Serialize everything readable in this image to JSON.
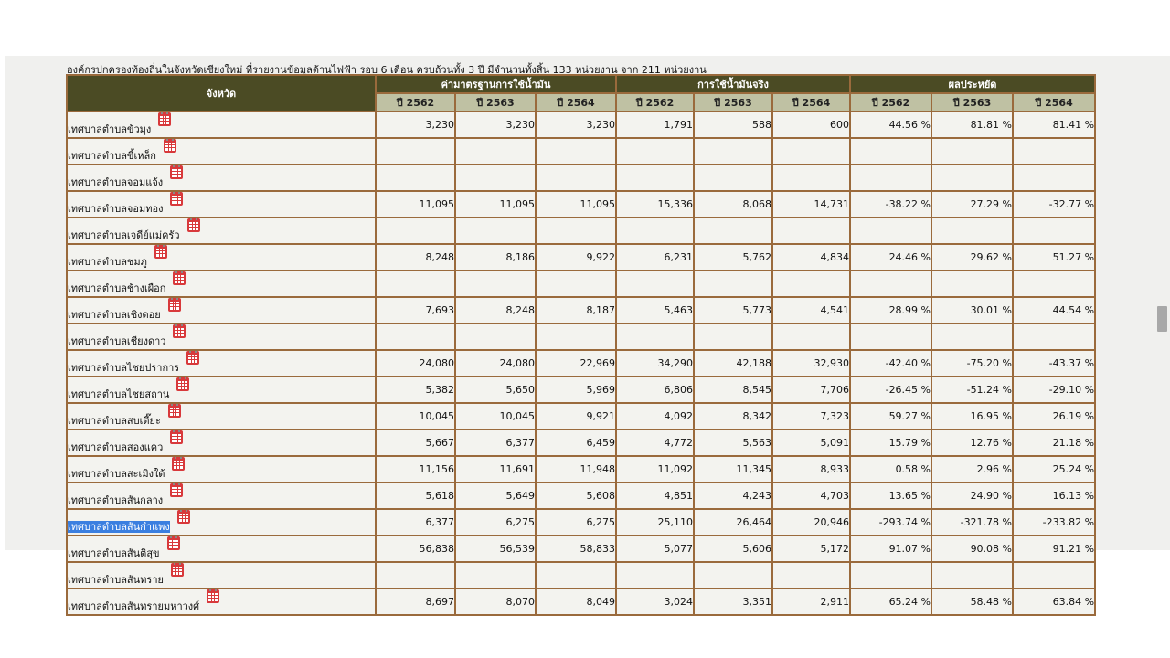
{
  "caption": "องค์กรปกครองท้องถิ่นในจังหวัดเชียงใหม่ ที่รายงานข้อมูลด้านไฟฟ้า รอบ 6 เดือน ครบถ้วนทั้ง 3 ปี มีจำนวนทั้งสิ้น 133 หน่วยงาน จาก 211 หน่วยงาน",
  "header": {
    "province": "จังหวัด",
    "group_standard": "ค่ามาตรฐานการใช้น้ำมัน",
    "group_actual": "การใช้น้ำมันจริง",
    "group_saving": "ผลประหยัด",
    "years": [
      "ปี 2562",
      "ปี 2563",
      "ปี 2564"
    ]
  },
  "rows": [
    {
      "name": "เทศบาลตำบลข้วมุง",
      "v": [
        "3,230",
        "3,230",
        "3,230",
        "1,791",
        "588",
        "600",
        "44.56 %",
        "81.81 %",
        "81.41 %"
      ]
    },
    {
      "name": "เทศบาลตำบลขี้เหล็ก",
      "v": [
        "",
        "",
        "",
        "",
        "",
        "",
        "",
        "",
        ""
      ]
    },
    {
      "name": "เทศบาลตำบลจอมแจ้ง",
      "v": [
        "",
        "",
        "",
        "",
        "",
        "",
        "",
        "",
        ""
      ]
    },
    {
      "name": "เทศบาลตำบลจอมทอง",
      "v": [
        "11,095",
        "11,095",
        "11,095",
        "15,336",
        "8,068",
        "14,731",
        "-38.22 %",
        "27.29 %",
        "-32.77 %"
      ]
    },
    {
      "name": "เทศบาลตำบลเจดีย์แม่ครัว",
      "v": [
        "",
        "",
        "",
        "",
        "",
        "",
        "",
        "",
        ""
      ]
    },
    {
      "name": "เทศบาลตำบลชมภู",
      "v": [
        "8,248",
        "8,186",
        "9,922",
        "6,231",
        "5,762",
        "4,834",
        "24.46 %",
        "29.62 %",
        "51.27 %"
      ]
    },
    {
      "name": "เทศบาลตำบลช้างเผือก",
      "v": [
        "",
        "",
        "",
        "",
        "",
        "",
        "",
        "",
        ""
      ]
    },
    {
      "name": "เทศบาลตำบลเชิงดอย",
      "v": [
        "7,693",
        "8,248",
        "8,187",
        "5,463",
        "5,773",
        "4,541",
        "28.99 %",
        "30.01 %",
        "44.54 %"
      ]
    },
    {
      "name": "เทศบาลตำบลเชียงดาว",
      "v": [
        "",
        "",
        "",
        "",
        "",
        "",
        "",
        "",
        ""
      ]
    },
    {
      "name": "เทศบาลตำบลไชยปราการ",
      "v": [
        "24,080",
        "24,080",
        "22,969",
        "34,290",
        "42,188",
        "32,930",
        "-42.40 %",
        "-75.20 %",
        "-43.37 %"
      ]
    },
    {
      "name": "เทศบาลตำบลไชยสถาน",
      "v": [
        "5,382",
        "5,650",
        "5,969",
        "6,806",
        "8,545",
        "7,706",
        "-26.45 %",
        "-51.24 %",
        "-29.10 %"
      ]
    },
    {
      "name": "เทศบาลตำบลสบเตี๊ยะ",
      "v": [
        "10,045",
        "10,045",
        "9,921",
        "4,092",
        "8,342",
        "7,323",
        "59.27 %",
        "16.95 %",
        "26.19 %"
      ]
    },
    {
      "name": "เทศบาลตำบลสองแคว",
      "v": [
        "5,667",
        "6,377",
        "6,459",
        "4,772",
        "5,563",
        "5,091",
        "15.79 %",
        "12.76 %",
        "21.18 %"
      ]
    },
    {
      "name": "เทศบาลตำบลสะเมิงใต้",
      "v": [
        "11,156",
        "11,691",
        "11,948",
        "11,092",
        "11,345",
        "8,933",
        "0.58 %",
        "2.96 %",
        "25.24 %"
      ]
    },
    {
      "name": "เทศบาลตำบลสันกลาง",
      "v": [
        "5,618",
        "5,649",
        "5,608",
        "4,851",
        "4,243",
        "4,703",
        "13.65 %",
        "24.90 %",
        "16.13 %"
      ]
    },
    {
      "name": "เทศบาลตำบลสันกำแพง",
      "v": [
        "6,377",
        "6,275",
        "6,275",
        "25,110",
        "26,464",
        "20,946",
        "-293.74 %",
        "-321.78 %",
        "-233.82 %"
      ],
      "highlight": true
    },
    {
      "name": "เทศบาลตำบลสันติสุข",
      "v": [
        "56,838",
        "56,539",
        "58,833",
        "5,077",
        "5,606",
        "5,172",
        "91.07 %",
        "90.08 %",
        "91.21 %"
      ]
    },
    {
      "name": "เทศบาลตำบลสันทราย",
      "v": [
        "",
        "",
        "",
        "",
        "",
        "",
        "",
        "",
        ""
      ]
    },
    {
      "name": "เทศบาลตำบลสันทรายมหาวงศ์",
      "v": [
        "8,697",
        "8,070",
        "8,049",
        "3,024",
        "3,351",
        "2,911",
        "65.24 %",
        "58.48 %",
        "63.84 %"
      ]
    }
  ]
}
